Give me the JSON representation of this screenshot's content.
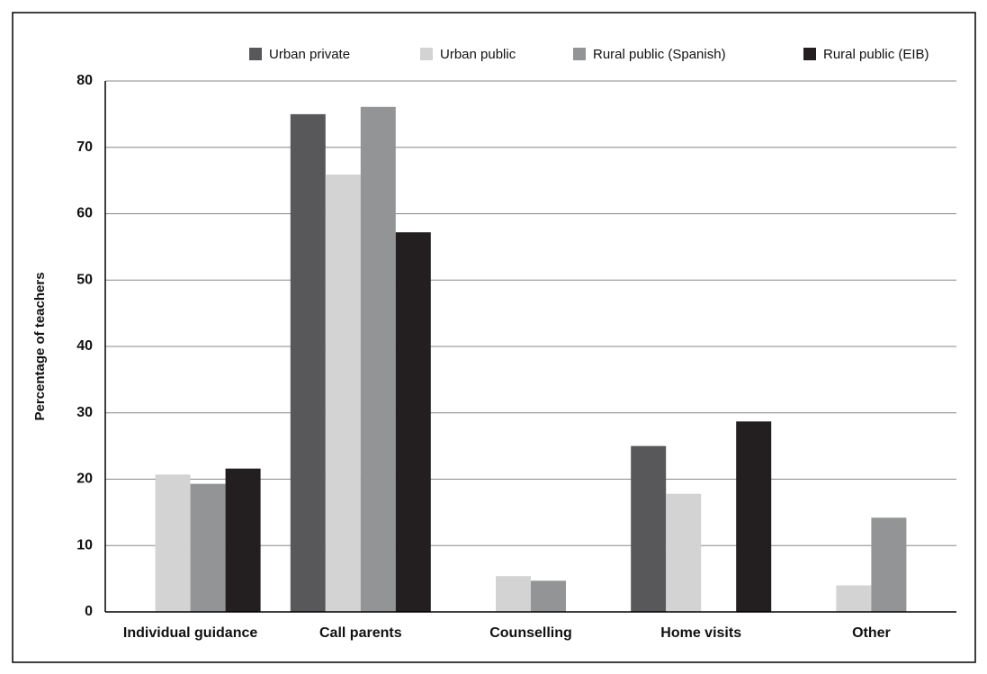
{
  "chart_data": {
    "type": "bar",
    "y_label": "Percentage of teachers",
    "categories": [
      "Individual guidance",
      "Call parents",
      "Counselling",
      "Home visits",
      "Other"
    ],
    "series": [
      {
        "name": "Urban private",
        "color": "#58585a",
        "values": [
          0,
          75,
          0,
          25,
          0
        ]
      },
      {
        "name": "Urban public",
        "color": "#d3d3d4",
        "values": [
          20.7,
          65.9,
          5.4,
          17.8,
          4
        ]
      },
      {
        "name": "Rural public (Spanish)",
        "color": "#939496",
        "values": [
          19.3,
          76.1,
          4.7,
          0,
          14.2
        ]
      },
      {
        "name": "Rural public (EIB)",
        "color": "#231f20",
        "values": [
          21.6,
          57.2,
          0,
          28.7,
          0
        ]
      }
    ],
    "ylim": [
      0,
      80
    ],
    "yticks": [
      0,
      10,
      20,
      30,
      40,
      50,
      60,
      70,
      80
    ],
    "grid": true,
    "legend": "top"
  }
}
